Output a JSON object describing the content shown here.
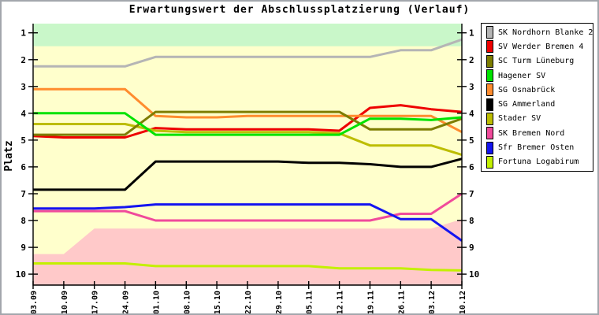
{
  "title": "Erwartungswert der Abschlussplatzierung (Verlauf)",
  "chart_data": {
    "type": "line",
    "title": "Erwartungswert der Abschlussplatzierung (Verlauf)",
    "ylabel": "Platz",
    "y_axis_reversed": true,
    "ylim": [
      0.65,
      10.4
    ],
    "y_ticks": [
      1,
      2,
      3,
      4,
      5,
      6,
      7,
      8,
      9,
      10
    ],
    "x_labels": [
      "03.09",
      "10.09",
      "17.09",
      "24.09",
      "01.10",
      "08.10",
      "15.10",
      "22.10",
      "29.10",
      "05.11",
      "12.11",
      "19.11",
      "26.11",
      "03.12",
      "10.12"
    ],
    "legend_position": "right-outside",
    "grid": false,
    "zones": {
      "plot_bg": "#ffffcc",
      "top": {
        "color": "#c9f7c9",
        "to": 1.5
      },
      "bottom": {
        "color": "#ffc9c9",
        "top_values": [
          9.25,
          9.25,
          8.3,
          8.3,
          8.3,
          8.3,
          8.3,
          8.3,
          8.3,
          8.3,
          8.3,
          8.3,
          8.3,
          8.3,
          7.95
        ]
      }
    },
    "draw_order": [
      0,
      1,
      6,
      4,
      2,
      7,
      5,
      3,
      8,
      9
    ],
    "series": [
      {
        "name": "SK Nordhorn Blanke 2",
        "color": "#b5b5b5",
        "values": [
          2.25,
          2.25,
          2.25,
          2.25,
          1.9,
          1.9,
          1.9,
          1.9,
          1.9,
          1.9,
          1.9,
          1.9,
          1.65,
          1.65,
          1.25
        ]
      },
      {
        "name": "SV Werder Bremen 4",
        "color": "#ee0000",
        "values": [
          4.85,
          4.9,
          4.9,
          4.9,
          4.55,
          4.6,
          4.6,
          4.6,
          4.6,
          4.6,
          4.65,
          3.8,
          3.7,
          3.85,
          3.95
        ]
      },
      {
        "name": "SC Turm Lüneburg",
        "color": "#7d7d00",
        "values": [
          4.8,
          4.8,
          4.8,
          4.8,
          3.95,
          3.95,
          3.95,
          3.95,
          3.95,
          3.95,
          3.95,
          4.6,
          4.6,
          4.6,
          4.2
        ]
      },
      {
        "name": "Hagener SV",
        "color": "#00e300",
        "values": [
          4.0,
          4.0,
          4.0,
          4.0,
          4.8,
          4.8,
          4.8,
          4.8,
          4.8,
          4.8,
          4.8,
          4.2,
          4.2,
          4.25,
          4.15
        ]
      },
      {
        "name": "SG Osnabrück",
        "color": "#ff8c2e",
        "values": [
          3.1,
          3.1,
          3.1,
          3.1,
          4.1,
          4.15,
          4.15,
          4.1,
          4.1,
          4.1,
          4.1,
          4.1,
          4.1,
          4.1,
          4.7
        ]
      },
      {
        "name": "SG Ammerland",
        "color": "#000000",
        "values": [
          6.85,
          6.85,
          6.85,
          6.85,
          5.8,
          5.8,
          5.8,
          5.8,
          5.8,
          5.85,
          5.85,
          5.9,
          6.0,
          6.0,
          5.7
        ]
      },
      {
        "name": "Stader SV",
        "color": "#bdbd00",
        "values": [
          4.4,
          4.4,
          4.4,
          4.4,
          4.65,
          4.7,
          4.7,
          4.7,
          4.7,
          4.7,
          4.75,
          5.2,
          5.2,
          5.2,
          5.55
        ]
      },
      {
        "name": "SK Bremen Nord",
        "color": "#f04a9b",
        "values": [
          7.65,
          7.65,
          7.65,
          7.65,
          8.0,
          8.0,
          8.0,
          8.0,
          8.0,
          8.0,
          8.0,
          8.0,
          7.75,
          7.75,
          7.0
        ]
      },
      {
        "name": "Sfr Bremer Osten",
        "color": "#1414f0",
        "values": [
          7.55,
          7.55,
          7.55,
          7.5,
          7.4,
          7.4,
          7.4,
          7.4,
          7.4,
          7.4,
          7.4,
          7.4,
          7.95,
          7.95,
          8.75
        ]
      },
      {
        "name": "Fortuna Logabirum",
        "color": "#c3f000",
        "values": [
          9.6,
          9.6,
          9.6,
          9.6,
          9.7,
          9.7,
          9.7,
          9.7,
          9.7,
          9.7,
          9.78,
          9.78,
          9.78,
          9.84,
          9.86
        ]
      }
    ]
  }
}
